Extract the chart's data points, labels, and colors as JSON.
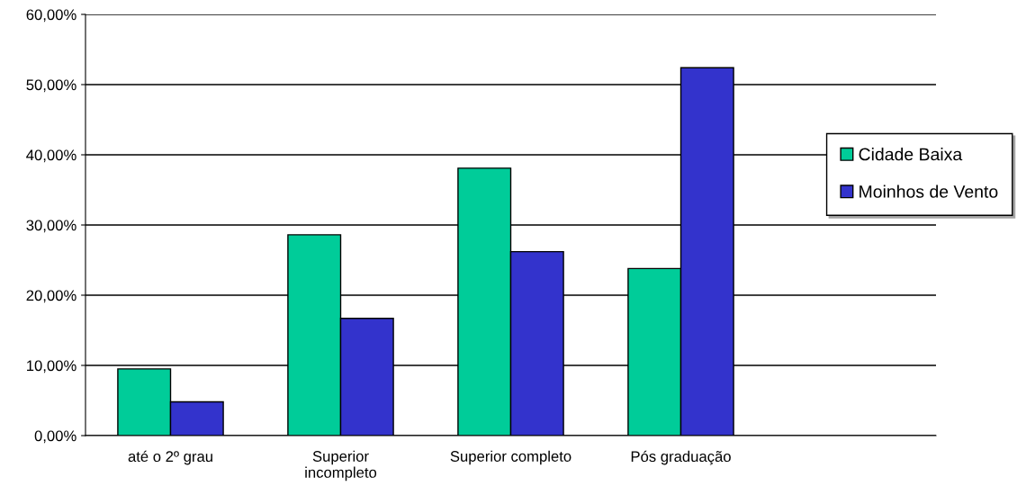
{
  "chart_data": {
    "type": "bar",
    "categories": [
      "até o 2º grau",
      "Superior\nincompleto",
      "Superior completo",
      "Pós graduação",
      null
    ],
    "series": [
      {
        "name": "Cidade Baixa",
        "color": "#00cc99",
        "values": [
          9.5,
          28.6,
          38.1,
          23.8,
          null
        ]
      },
      {
        "name": "Moinhos de Vento",
        "color": "#3333cc",
        "values": [
          4.8,
          16.7,
          26.2,
          52.4,
          null
        ]
      }
    ],
    "ylim": [
      0,
      60
    ],
    "yticks": [
      {
        "value": 0,
        "label": "0,00%"
      },
      {
        "value": 10,
        "label": "10,00%"
      },
      {
        "value": 20,
        "label": "20,00%"
      },
      {
        "value": 30,
        "label": "30,00%"
      },
      {
        "value": 40,
        "label": "40,00%"
      },
      {
        "value": 50,
        "label": "50,00%"
      },
      {
        "value": 60,
        "label": "60,00%"
      }
    ],
    "grid": "y",
    "legend": "right"
  }
}
